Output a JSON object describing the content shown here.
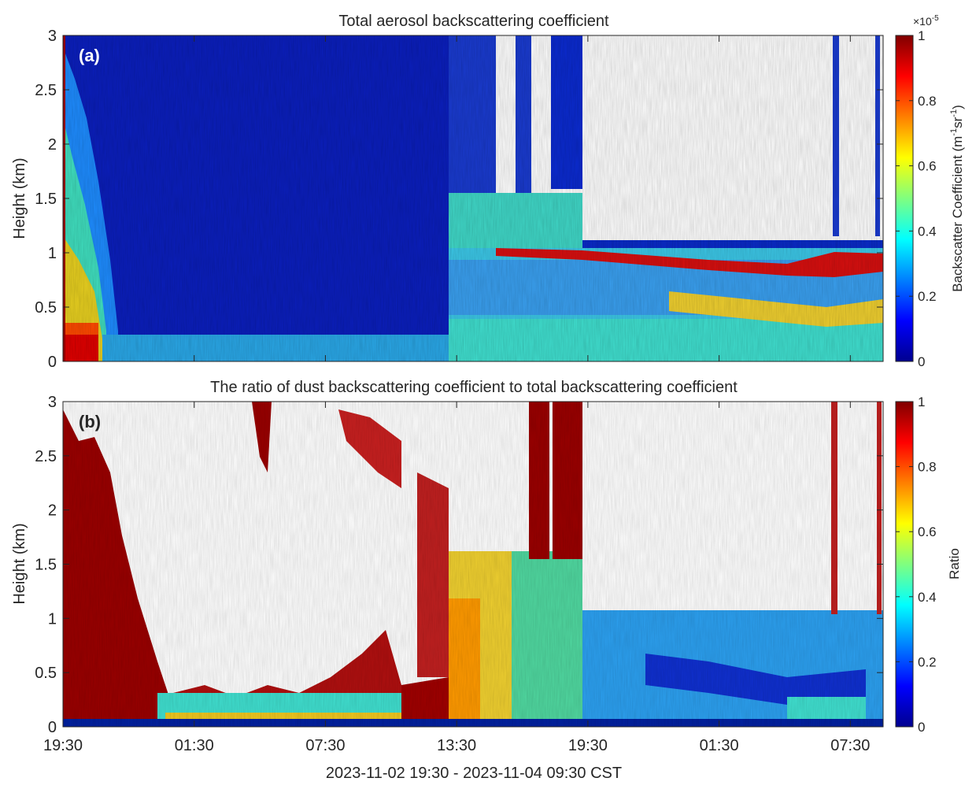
{
  "figure": {
    "xlabel": "2023-11-02 19:30 - 2023-11-04 09:30 CST"
  },
  "chart_data": [
    {
      "type": "heatmap",
      "panel_label": "(a)",
      "title": "Total aerosol backscattering coefficient",
      "xlabel": "",
      "ylabel": "Height (km)",
      "x_ticks": [
        "19:30",
        "01:30",
        "07:30",
        "13:30",
        "19:30",
        "01:30",
        "07:30"
      ],
      "y_ticks": [
        "0",
        "0.5",
        "1",
        "1.5",
        "2",
        "2.5",
        "3"
      ],
      "ylim": [
        0,
        3
      ],
      "colorbar": {
        "label_main": "Backscatter Coefficient (m",
        "label_exp1": "-1",
        "label_mid": "sr",
        "label_exp2": "-1",
        "label_end": ")",
        "scale_base": "×10",
        "scale_exp": "-5",
        "ticks": [
          "0",
          "0.2",
          "0.4",
          "0.6",
          "0.8",
          "1"
        ],
        "range": [
          0,
          1
        ]
      },
      "colormap": "jet",
      "grid": false
    },
    {
      "type": "heatmap",
      "panel_label": "(b)",
      "title": "The ratio of dust backscattering coefficient to total backscattering coefficient",
      "xlabel": "",
      "ylabel": "Height (km)",
      "x_ticks": [
        "19:30",
        "01:30",
        "07:30",
        "13:30",
        "19:30",
        "01:30",
        "07:30"
      ],
      "y_ticks": [
        "0",
        "0.5",
        "1",
        "1.5",
        "2",
        "2.5",
        "3"
      ],
      "ylim": [
        0,
        3
      ],
      "colorbar": {
        "label_main": "Ratio",
        "ticks": [
          "0",
          "0.2",
          "0.4",
          "0.6",
          "0.8",
          "1"
        ],
        "range": [
          0,
          1
        ]
      },
      "colormap": "jet",
      "grid": false
    }
  ]
}
